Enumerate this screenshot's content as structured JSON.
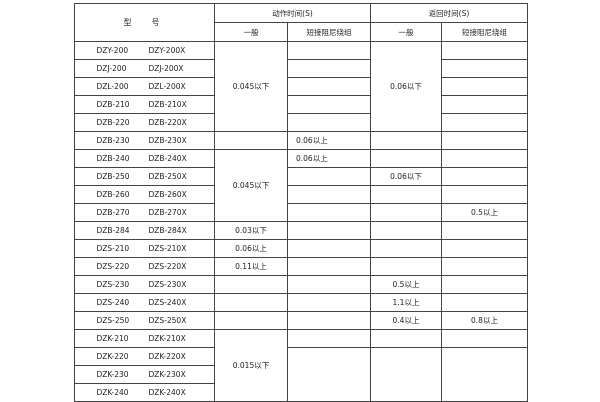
{
  "header": {
    "model": "型　号",
    "action_time": "动作时间(S)",
    "return_time": "返回时间(S)",
    "general": "一般",
    "short_damping": "短接阻尼绕组"
  },
  "rows": [
    {
      "model_a": "DZY-200",
      "model_b": "DZY-200X",
      "action_general": "0.045以下",
      "action_short": "",
      "return_general": "0.06以下",
      "return_short": ""
    },
    {
      "model_a": "DZJ-200",
      "model_b": "DZJ-200X",
      "action_short": "",
      "return_short": ""
    },
    {
      "model_a": "DZL-200",
      "model_b": "DZL-200X",
      "action_short": "",
      "return_short": ""
    },
    {
      "model_a": "DZB-210",
      "model_b": "DZB-210X",
      "action_short": "",
      "return_short": ""
    },
    {
      "model_a": "DZB-220",
      "model_b": "DZB-220X",
      "action_short": "",
      "return_short": ""
    },
    {
      "model_a": "DZB-230",
      "model_b": "DZB-230X",
      "action_general": "",
      "action_short": "0.06以上",
      "return_general": "",
      "return_short": ""
    },
    {
      "model_a": "DZB-240",
      "model_b": "DZB-240X",
      "action_general": "0.045以下",
      "action_short": "0.06以上",
      "return_general": "",
      "return_short": ""
    },
    {
      "model_a": "DZB-250",
      "model_b": "DZB-250X",
      "action_short": "",
      "return_general": "0.06以下",
      "return_short": ""
    },
    {
      "model_a": "DZB-260",
      "model_b": "DZB-260X",
      "action_short": "",
      "return_general": "",
      "return_short": ""
    },
    {
      "model_a": "DZB-270",
      "model_b": "DZB-270X",
      "action_short": "",
      "return_general": "",
      "return_short": "0.5以上"
    },
    {
      "model_a": "DZB-284",
      "model_b": "DZB-284X",
      "action_general": "0.03以下",
      "action_short": "",
      "return_general": "",
      "return_short": ""
    },
    {
      "model_a": "DZS-210",
      "model_b": "DZS-210X",
      "action_general": "0.06以上",
      "action_short": "",
      "return_general": "",
      "return_short": ""
    },
    {
      "model_a": "DZS-220",
      "model_b": "DZS-220X",
      "action_general": "0.11以上",
      "action_short": "",
      "return_general": "",
      "return_short": ""
    },
    {
      "model_a": "DZS-230",
      "model_b": "DZS-230X",
      "action_general": "",
      "action_short": "",
      "return_general": "0.5以上",
      "return_short": ""
    },
    {
      "model_a": "DZS-240",
      "model_b": "DZS-240X",
      "action_general": "",
      "action_short": "",
      "return_general": "1.1以上",
      "return_short": ""
    },
    {
      "model_a": "DZS-250",
      "model_b": "DZS-250X",
      "action_general": "",
      "action_short": "",
      "return_general": "0.4以上",
      "return_short": "0.8以上"
    },
    {
      "model_a": "DZK-210",
      "model_b": "DZK-210X",
      "action_general": "0.015以下",
      "action_short": "",
      "return_general": "",
      "return_short": ""
    },
    {
      "model_a": "DZK-220",
      "model_b": "DZK-220X",
      "action_short": "",
      "return_general": "",
      "return_short": ""
    },
    {
      "model_a": "DZK-230",
      "model_b": "DZK-230X"
    },
    {
      "model_a": "DZK-240",
      "model_b": "DZK-240X"
    }
  ]
}
